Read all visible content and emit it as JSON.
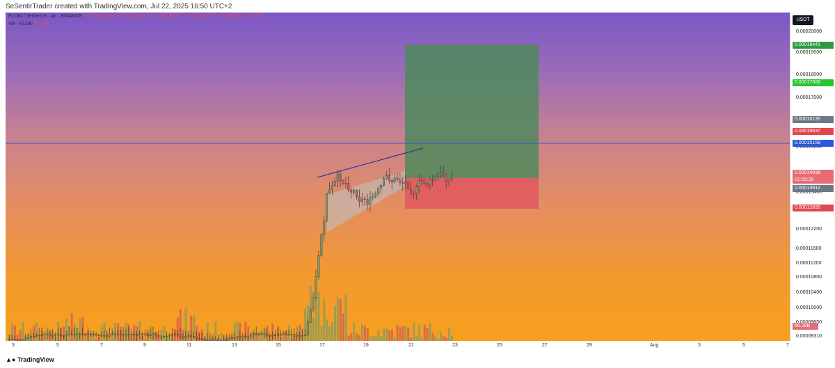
{
  "credit": "SeSentirTrader created with TradingView.com, Jul 22, 2025 16:50 UTC+2",
  "legend": {
    "symbol": "FLOKI / TetherUS · 4h · BINANCE",
    "open": "O0.00014281",
    "high": "H0.00014290",
    "low": "L0.00013867",
    "close": "C0.00014038",
    "change": "-0.00000243 (-1.70%)",
    "vol_label": "Vol · FLOKI",
    "vol_value": "66.28B"
  },
  "currency": "USDT",
  "price_axis": [
    "0.00020000",
    "0.00019000",
    "0.00018000",
    "0.00017000",
    "0.00015000",
    "0.00013400",
    "0.00012200",
    "0.00011600",
    "0.00011200",
    "0.00010800",
    "0.00010400",
    "0.00010000",
    "0.00009650",
    "0.00009310"
  ],
  "badges": {
    "tp": "0.00019441",
    "tp2": "0.00017666",
    "b1": "0.00016135",
    "b2": "0.00015637",
    "hline": "0.00015159",
    "last": "0.00014038",
    "countdown": "01:09:28",
    "b3": "0.00013912",
    "sl": "0.00012895",
    "vol": "66.28B"
  },
  "time_axis": [
    "3",
    "5",
    "7",
    "9",
    "11",
    "13",
    "15",
    "17",
    "19",
    "21",
    "23",
    "25",
    "27",
    "29",
    "Aug",
    "3",
    "5",
    "7"
  ],
  "footer": {
    "brand": "TradingView"
  },
  "colors": {
    "up": "#7a9a6a",
    "down": "#d0545c",
    "tp_zone": "#4f8a5c",
    "sl_zone": "#e05a5e",
    "hline": "#2f56d6"
  },
  "chart_data": {
    "type": "candlestick",
    "symbol": "FLOKI / TetherUS",
    "interval": "4h",
    "ylim": [
      9.31e-05,
      0.0002
    ],
    "x_ticks": [
      "3",
      "5",
      "7",
      "9",
      "11",
      "13",
      "15",
      "17",
      "19",
      "21",
      "23",
      "25",
      "27",
      "29",
      "Aug",
      "3",
      "5",
      "7"
    ],
    "horizontal_line": 0.00015159,
    "position": {
      "take_profit": 0.00019441,
      "entry": 0.00014038,
      "stop_loss": 0.00012895
    },
    "last_price": 0.00014038,
    "last_volume": "66.28B"
  }
}
